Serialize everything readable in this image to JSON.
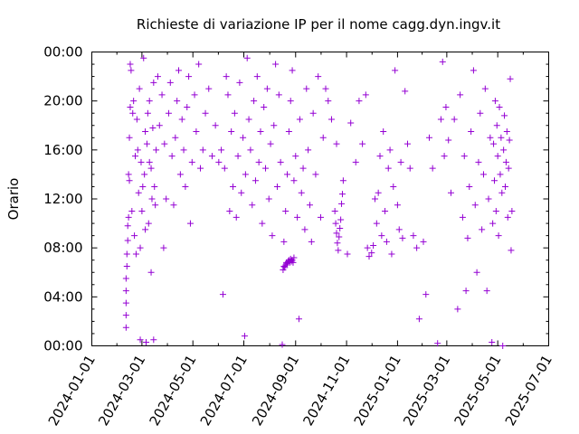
{
  "chart_data": {
    "type": "scatter",
    "title": "Richieste di variazione IP per il nome cagg.dyn.ingv.it",
    "xlabel": "",
    "ylabel": "Orario",
    "marker": "+",
    "color": "#9400d3",
    "grid": false,
    "legend": "none",
    "xlim": [
      "2024-01-01",
      "2025-07-01"
    ],
    "ylim": [
      0,
      24
    ],
    "x_ticks": [
      "2024-01-01",
      "2024-03-01",
      "2024-05-01",
      "2024-07-01",
      "2024-09-01",
      "2024-11-01",
      "2025-01-01",
      "2025-03-01",
      "2025-05-01",
      "2025-07-01"
    ],
    "y_ticks": [
      {
        "value": 0,
        "label": "00:00"
      },
      {
        "value": 4,
        "label": "04:00"
      },
      {
        "value": 8,
        "label": "08:00"
      },
      {
        "value": 12,
        "label": "12:00"
      },
      {
        "value": 16,
        "label": "16:00"
      },
      {
        "value": 20,
        "label": "20:00"
      },
      {
        "value": 24,
        "label": "00:00"
      }
    ],
    "points": [
      [
        "2024-02-11",
        1.5
      ],
      [
        "2024-02-11",
        2.5
      ],
      [
        "2024-02-11",
        3.5
      ],
      [
        "2024-02-11",
        4.5
      ],
      [
        "2024-02-11",
        5.5
      ],
      [
        "2024-02-12",
        6.5
      ],
      [
        "2024-02-12",
        7.5
      ],
      [
        "2024-02-13",
        8.6
      ],
      [
        "2024-02-13",
        9.8
      ],
      [
        "2024-02-14",
        10.5
      ],
      [
        "2024-02-14",
        14.0
      ],
      [
        "2024-02-15",
        13.5
      ],
      [
        "2024-02-15",
        17.0
      ],
      [
        "2024-02-16",
        19.5
      ],
      [
        "2024-02-16",
        23.0
      ],
      [
        "2024-02-17",
        22.5
      ],
      [
        "2024-02-18",
        11.0
      ],
      [
        "2024-02-19",
        19.0
      ],
      [
        "2024-02-20",
        20.0
      ],
      [
        "2024-02-21",
        9.0
      ],
      [
        "2024-02-22",
        15.5
      ],
      [
        "2024-02-23",
        7.5
      ],
      [
        "2024-02-24",
        18.5
      ],
      [
        "2024-02-25",
        16.0
      ],
      [
        "2024-02-26",
        12.5
      ],
      [
        "2024-02-27",
        21.0
      ],
      [
        "2024-02-28",
        0.5
      ],
      [
        "2024-02-28",
        8.0
      ],
      [
        "2024-02-29",
        15.0
      ],
      [
        "2024-03-01",
        11.0
      ],
      [
        "2024-03-02",
        13.0
      ],
      [
        "2024-03-03",
        23.5
      ],
      [
        "2024-03-04",
        14.0
      ],
      [
        "2024-03-05",
        17.5
      ],
      [
        "2024-03-05",
        9.5
      ],
      [
        "2024-03-06",
        0.3
      ],
      [
        "2024-03-07",
        16.5
      ],
      [
        "2024-03-08",
        19.0
      ],
      [
        "2024-03-09",
        10.0
      ],
      [
        "2024-03-10",
        15.0
      ],
      [
        "2024-03-10",
        20.0
      ],
      [
        "2024-03-12",
        14.5
      ],
      [
        "2024-03-12",
        6.0
      ],
      [
        "2024-03-13",
        12.0
      ],
      [
        "2024-03-14",
        17.8
      ],
      [
        "2024-03-15",
        21.5
      ],
      [
        "2024-03-15",
        0.5
      ],
      [
        "2024-03-16",
        13.0
      ],
      [
        "2024-03-17",
        11.5
      ],
      [
        "2024-03-18",
        16.0
      ],
      [
        "2024-03-20",
        22.0
      ],
      [
        "2024-03-22",
        18.0
      ],
      [
        "2024-03-25",
        20.5
      ],
      [
        "2024-03-27",
        8.0
      ],
      [
        "2024-03-28",
        16.5
      ],
      [
        "2024-03-30",
        12.0
      ],
      [
        "2024-04-02",
        19.0
      ],
      [
        "2024-04-04",
        21.5
      ],
      [
        "2024-04-06",
        15.5
      ],
      [
        "2024-04-08",
        11.5
      ],
      [
        "2024-04-10",
        17.0
      ],
      [
        "2024-04-12",
        20.0
      ],
      [
        "2024-04-14",
        22.5
      ],
      [
        "2024-04-16",
        14.0
      ],
      [
        "2024-04-18",
        18.5
      ],
      [
        "2024-04-20",
        16.0
      ],
      [
        "2024-04-22",
        13.0
      ],
      [
        "2024-04-24",
        19.5
      ],
      [
        "2024-04-26",
        22.0
      ],
      [
        "2024-04-28",
        10.0
      ],
      [
        "2024-04-30",
        15.0
      ],
      [
        "2024-05-03",
        20.5
      ],
      [
        "2024-05-05",
        17.5
      ],
      [
        "2024-05-08",
        23.0
      ],
      [
        "2024-05-10",
        14.5
      ],
      [
        "2024-05-13",
        16.0
      ],
      [
        "2024-05-16",
        19.0
      ],
      [
        "2024-05-20",
        21.0
      ],
      [
        "2024-05-24",
        15.5
      ],
      [
        "2024-05-28",
        18.0
      ],
      [
        "2024-06-01",
        15.0
      ],
      [
        "2024-06-04",
        16.0
      ],
      [
        "2024-06-06",
        4.2
      ],
      [
        "2024-06-08",
        14.5
      ],
      [
        "2024-06-10",
        22.0
      ],
      [
        "2024-06-12",
        20.5
      ],
      [
        "2024-06-14",
        11.0
      ],
      [
        "2024-06-16",
        17.5
      ],
      [
        "2024-06-18",
        13.0
      ],
      [
        "2024-06-20",
        19.0
      ],
      [
        "2024-06-22",
        10.5
      ],
      [
        "2024-06-24",
        15.5
      ],
      [
        "2024-06-26",
        21.5
      ],
      [
        "2024-06-28",
        12.5
      ],
      [
        "2024-06-30",
        17.0
      ],
      [
        "2024-07-02",
        0.8
      ],
      [
        "2024-07-03",
        14.0
      ],
      [
        "2024-07-05",
        23.5
      ],
      [
        "2024-07-07",
        18.5
      ],
      [
        "2024-07-09",
        16.0
      ],
      [
        "2024-07-11",
        11.5
      ],
      [
        "2024-07-13",
        20.0
      ],
      [
        "2024-07-15",
        13.5
      ],
      [
        "2024-07-17",
        22.0
      ],
      [
        "2024-07-19",
        15.0
      ],
      [
        "2024-07-21",
        17.5
      ],
      [
        "2024-07-23",
        10.0
      ],
      [
        "2024-07-25",
        19.5
      ],
      [
        "2024-07-27",
        14.5
      ],
      [
        "2024-07-29",
        21.0
      ],
      [
        "2024-07-31",
        12.0
      ],
      [
        "2024-08-02",
        16.5
      ],
      [
        "2024-08-04",
        9.0
      ],
      [
        "2024-08-06",
        18.0
      ],
      [
        "2024-08-08",
        23.0
      ],
      [
        "2024-08-10",
        13.0
      ],
      [
        "2024-08-12",
        20.5
      ],
      [
        "2024-08-14",
        15.0
      ],
      [
        "2024-08-16",
        0.1
      ],
      [
        "2024-08-17",
        6.2
      ],
      [
        "2024-08-18",
        6.5
      ],
      [
        "2024-08-19",
        6.4
      ],
      [
        "2024-08-20",
        6.6
      ],
      [
        "2024-08-21",
        6.8
      ],
      [
        "2024-08-22",
        6.7
      ],
      [
        "2024-08-23",
        6.9
      ],
      [
        "2024-08-24",
        7.0
      ],
      [
        "2024-08-25",
        6.8
      ],
      [
        "2024-08-26",
        7.1
      ],
      [
        "2024-08-27",
        6.9
      ],
      [
        "2024-08-28",
        7.0
      ],
      [
        "2024-08-29",
        6.8
      ],
      [
        "2024-08-30",
        7.2
      ],
      [
        "2024-08-18",
        8.5
      ],
      [
        "2024-08-20",
        11.0
      ],
      [
        "2024-08-22",
        14.0
      ],
      [
        "2024-08-24",
        17.5
      ],
      [
        "2024-08-26",
        20.0
      ],
      [
        "2024-08-28",
        22.5
      ],
      [
        "2024-08-30",
        13.5
      ],
      [
        "2024-09-01",
        15.5
      ],
      [
        "2024-09-03",
        10.5
      ],
      [
        "2024-09-05",
        2.2
      ],
      [
        "2024-09-06",
        18.5
      ],
      [
        "2024-09-08",
        12.5
      ],
      [
        "2024-09-10",
        14.5
      ],
      [
        "2024-09-12",
        9.5
      ],
      [
        "2024-09-14",
        21.0
      ],
      [
        "2024-09-16",
        16.0
      ],
      [
        "2024-09-18",
        11.5
      ],
      [
        "2024-09-20",
        8.5
      ],
      [
        "2024-09-22",
        19.0
      ],
      [
        "2024-09-25",
        14.0
      ],
      [
        "2024-09-28",
        22.0
      ],
      [
        "2024-10-01",
        10.5
      ],
      [
        "2024-10-04",
        17.0
      ],
      [
        "2024-10-07",
        21.0
      ],
      [
        "2024-10-10",
        20.0
      ],
      [
        "2024-10-14",
        18.5
      ],
      [
        "2024-10-18",
        11.0
      ],
      [
        "2024-10-19",
        10.0
      ],
      [
        "2024-10-20",
        9.2
      ],
      [
        "2024-10-21",
        8.4
      ],
      [
        "2024-10-22",
        7.8
      ],
      [
        "2024-10-23",
        8.9
      ],
      [
        "2024-10-24",
        9.6
      ],
      [
        "2024-10-25",
        10.3
      ],
      [
        "2024-10-26",
        11.6
      ],
      [
        "2024-10-27",
        12.4
      ],
      [
        "2024-10-28",
        13.5
      ],
      [
        "2024-10-20",
        16.5
      ],
      [
        "2024-11-02",
        7.5
      ],
      [
        "2024-11-06",
        18.2
      ],
      [
        "2024-11-12",
        15.0
      ],
      [
        "2024-11-16",
        20.0
      ],
      [
        "2024-11-20",
        16.5
      ],
      [
        "2024-11-24",
        20.5
      ],
      [
        "2024-11-26",
        8.0
      ],
      [
        "2024-11-28",
        7.3
      ],
      [
        "2024-12-01",
        7.6
      ],
      [
        "2024-12-03",
        8.2
      ],
      [
        "2024-12-05",
        12.0
      ],
      [
        "2024-12-07",
        10.0
      ],
      [
        "2024-12-09",
        12.5
      ],
      [
        "2024-12-11",
        15.5
      ],
      [
        "2024-12-13",
        9.0
      ],
      [
        "2024-12-15",
        17.5
      ],
      [
        "2024-12-17",
        11.0
      ],
      [
        "2024-12-19",
        8.5
      ],
      [
        "2024-12-21",
        14.5
      ],
      [
        "2024-12-23",
        16.0
      ],
      [
        "2024-12-25",
        7.5
      ],
      [
        "2024-12-27",
        13.0
      ],
      [
        "2024-12-29",
        22.5
      ],
      [
        "2025-01-01",
        11.5
      ],
      [
        "2025-01-03",
        9.5
      ],
      [
        "2025-01-05",
        15.0
      ],
      [
        "2025-01-07",
        8.8
      ],
      [
        "2025-01-10",
        20.8
      ],
      [
        "2025-01-13",
        16.5
      ],
      [
        "2025-01-16",
        14.5
      ],
      [
        "2025-01-20",
        9.0
      ],
      [
        "2025-01-24",
        8.0
      ],
      [
        "2025-01-27",
        2.2
      ],
      [
        "2025-02-01",
        8.5
      ],
      [
        "2025-02-04",
        4.2
      ],
      [
        "2025-02-08",
        17.0
      ],
      [
        "2025-02-12",
        14.5
      ],
      [
        "2025-02-18",
        0.2
      ],
      [
        "2025-02-22",
        18.5
      ],
      [
        "2025-02-24",
        23.2
      ],
      [
        "2025-02-26",
        15.5
      ],
      [
        "2025-02-28",
        19.5
      ],
      [
        "2025-03-03",
        16.8
      ],
      [
        "2025-03-06",
        12.5
      ],
      [
        "2025-03-10",
        18.5
      ],
      [
        "2025-03-14",
        3.0
      ],
      [
        "2025-03-17",
        20.5
      ],
      [
        "2025-03-20",
        10.5
      ],
      [
        "2025-03-22",
        15.5
      ],
      [
        "2025-03-24",
        4.5
      ],
      [
        "2025-03-26",
        8.8
      ],
      [
        "2025-03-28",
        13.0
      ],
      [
        "2025-03-30",
        17.5
      ],
      [
        "2025-04-02",
        22.5
      ],
      [
        "2025-04-04",
        11.5
      ],
      [
        "2025-04-06",
        6.0
      ],
      [
        "2025-04-08",
        15.0
      ],
      [
        "2025-04-10",
        19.0
      ],
      [
        "2025-04-12",
        9.5
      ],
      [
        "2025-04-14",
        14.0
      ],
      [
        "2025-04-16",
        21.0
      ],
      [
        "2025-04-18",
        4.5
      ],
      [
        "2025-04-20",
        12.0
      ],
      [
        "2025-04-22",
        17.0
      ],
      [
        "2025-04-24",
        0.3
      ],
      [
        "2025-04-25",
        10.0
      ],
      [
        "2025-04-26",
        16.5
      ],
      [
        "2025-04-27",
        13.5
      ],
      [
        "2025-04-28",
        20.0
      ],
      [
        "2025-04-29",
        11.0
      ],
      [
        "2025-04-30",
        18.0
      ],
      [
        "2025-05-01",
        15.5
      ],
      [
        "2025-05-02",
        9.0
      ],
      [
        "2025-05-03",
        19.5
      ],
      [
        "2025-05-04",
        14.0
      ],
      [
        "2025-05-05",
        17.0
      ],
      [
        "2025-05-06",
        12.5
      ],
      [
        "2025-05-07",
        0.0
      ],
      [
        "2025-05-08",
        16.0
      ],
      [
        "2025-05-09",
        18.8
      ],
      [
        "2025-05-10",
        13.0
      ],
      [
        "2025-05-11",
        15.0
      ],
      [
        "2025-05-12",
        17.5
      ],
      [
        "2025-05-13",
        10.5
      ],
      [
        "2025-05-14",
        14.5
      ],
      [
        "2025-05-15",
        16.8
      ],
      [
        "2025-05-16",
        21.8
      ],
      [
        "2025-05-17",
        7.8
      ],
      [
        "2025-05-18",
        11.0
      ]
    ]
  }
}
